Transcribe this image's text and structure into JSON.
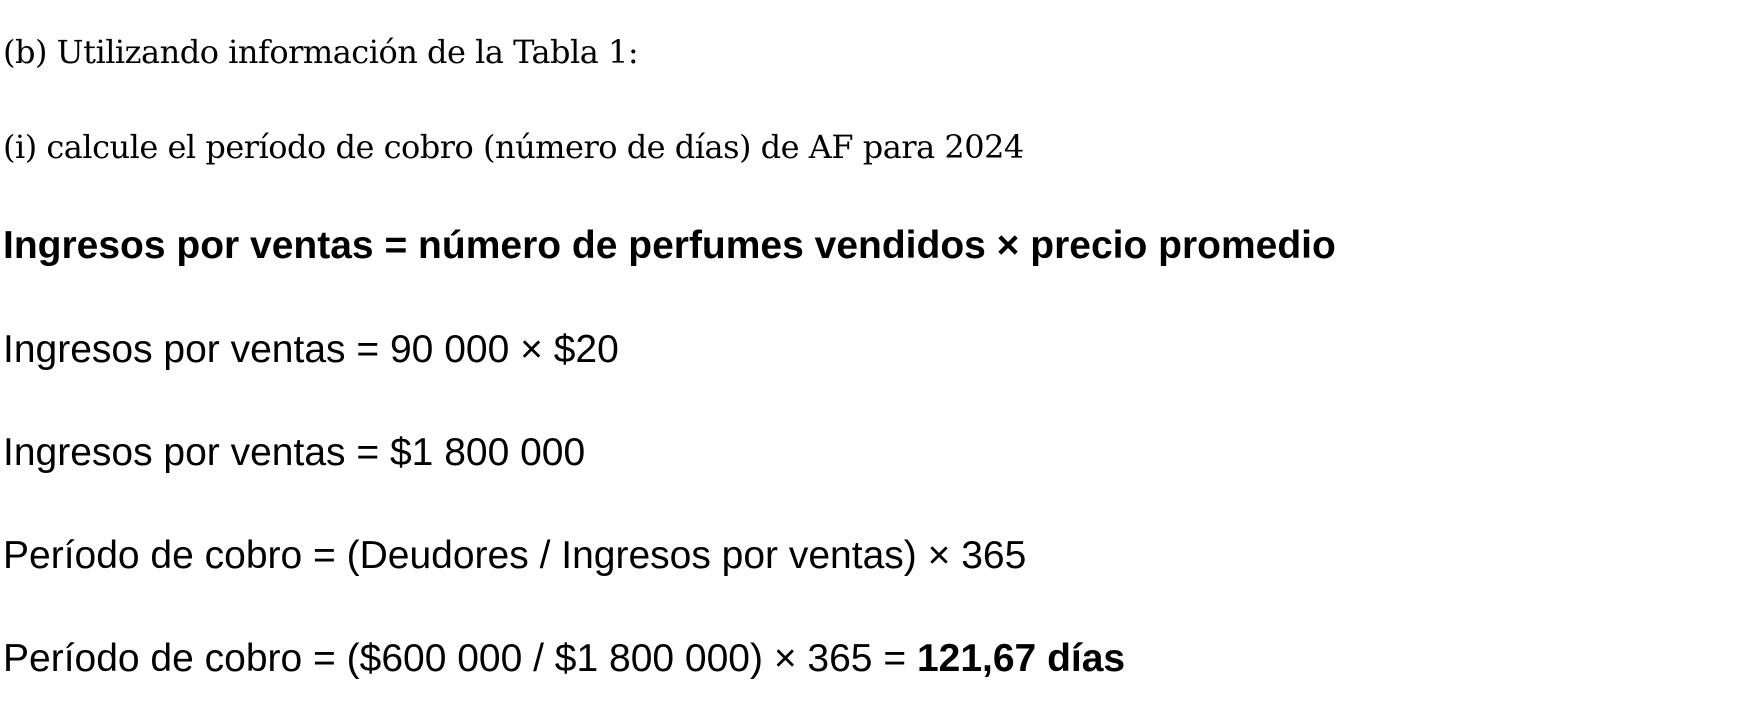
{
  "question": {
    "part_b": "(b) Utilizando información de la Tabla 1:",
    "part_i": "(i) calcule el período de cobro (número de días) de AF para 2024"
  },
  "answer": {
    "formula": "Ingresos por ventas = número de perfumes vendidos × precio promedio",
    "step1": "Ingresos por ventas = 90 000 × $20",
    "step2": "Ingresos por ventas = $1 800 000",
    "step3": "Período de cobro = (Deudores / Ingresos por ventas) × 365",
    "step4_prefix": "Período de cobro = ($600 000 / $1 800 000) × 365 = ",
    "step4_result": "121,67 días"
  }
}
